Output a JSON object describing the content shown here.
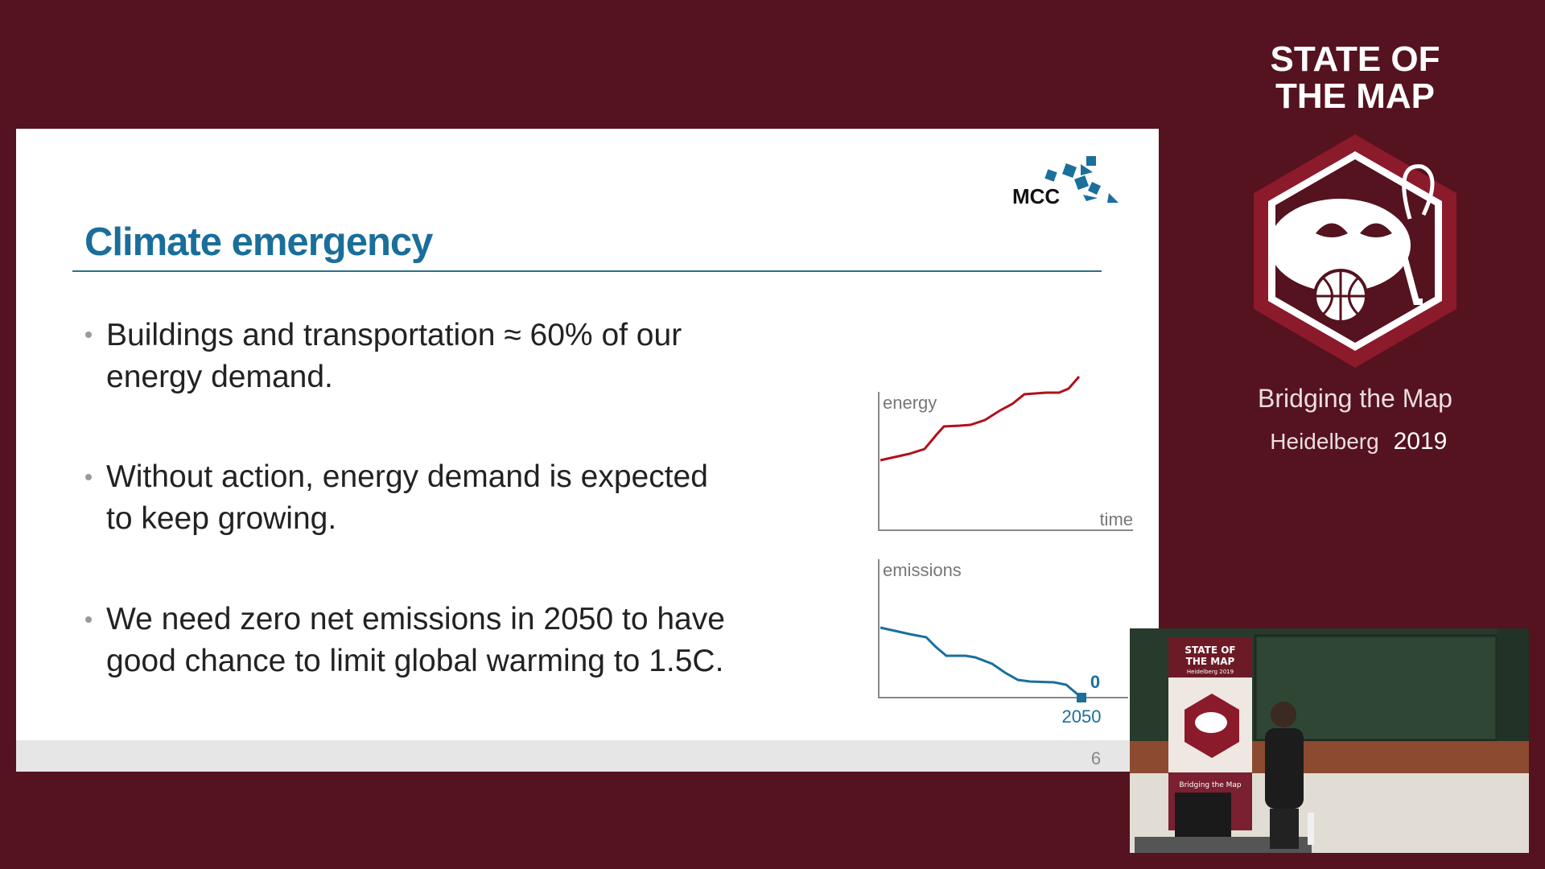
{
  "sidebar": {
    "title_lines": [
      "STATE OF",
      "THE MAP"
    ],
    "tagline": "Bridging the Map",
    "location": "Heidelberg",
    "year": "2019"
  },
  "slide": {
    "logo": "MCC",
    "title": "Climate emergency",
    "bullets": [
      [
        "Buildings and transportation ≈ 60% of our",
        "energy demand."
      ],
      [
        "Without action, energy demand is expected",
        "to keep growing."
      ],
      [
        "We need zero net emissions in 2050 to have",
        "good chance to limit global warming to 1.5C."
      ]
    ],
    "sketch": {
      "energy_label": "energy",
      "time_label": "time",
      "emissions_label": "emissions",
      "zero_label": "0",
      "year_label": "2050"
    },
    "page_number": "6"
  },
  "webcam": {
    "banner_lines": [
      "STATE OF",
      "THE MAP",
      "Heidelberg 2019"
    ],
    "banner_tagline": "Bridging the Map"
  }
}
